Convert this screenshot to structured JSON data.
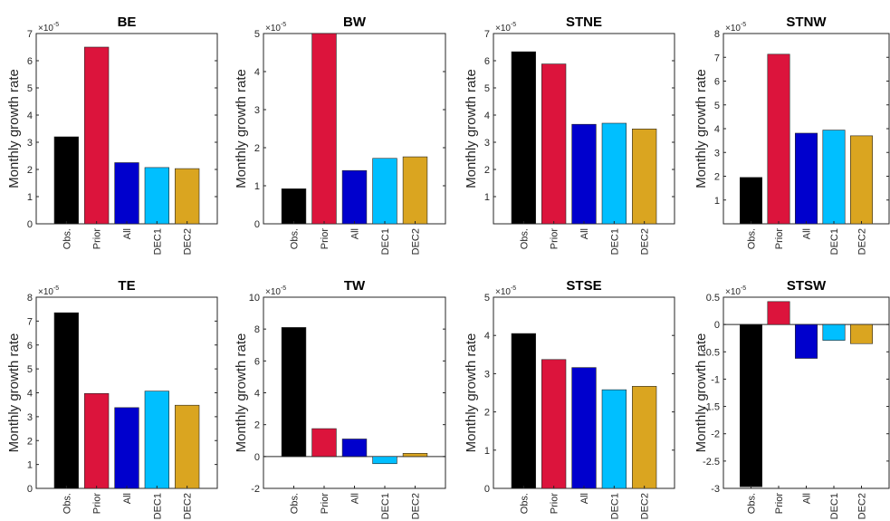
{
  "chart_data": [
    {
      "type": "bar",
      "title": "BE",
      "ylabel": "Monthly growth rate",
      "multiplier": "-5",
      "categories": [
        "Obs.",
        "Prior",
        "All",
        "DEC1",
        "DEC2"
      ],
      "values": [
        3.2,
        6.5,
        2.25,
        2.07,
        2.03
      ],
      "ylim": [
        0,
        7
      ],
      "yticks": [
        0,
        1,
        2,
        3,
        4,
        5,
        6,
        7
      ],
      "colors": [
        "#000000",
        "#DC143C",
        "#0000CD",
        "#00BFFF",
        "#DAA520"
      ]
    },
    {
      "type": "bar",
      "title": "BW",
      "ylabel": "Monthly growth rate",
      "multiplier": "-5",
      "categories": [
        "Obs.",
        "Prior",
        "All",
        "DEC1",
        "DEC2"
      ],
      "values": [
        0.92,
        5.0,
        1.4,
        1.72,
        1.76
      ],
      "ylim": [
        0,
        5
      ],
      "yticks": [
        0,
        1,
        2,
        3,
        4,
        5
      ],
      "colors": [
        "#000000",
        "#DC143C",
        "#0000CD",
        "#00BFFF",
        "#DAA520"
      ]
    },
    {
      "type": "bar",
      "title": "STNE",
      "ylabel": "Monthly growth rate",
      "multiplier": "-5",
      "categories": [
        "Obs.",
        "Prior",
        "All",
        "DEC1",
        "DEC2"
      ],
      "values": [
        6.33,
        5.88,
        3.66,
        3.7,
        3.49
      ],
      "ylim": [
        0,
        7
      ],
      "yticks": [
        1,
        2,
        3,
        4,
        5,
        6,
        7
      ],
      "colors": [
        "#000000",
        "#DC143C",
        "#0000CD",
        "#00BFFF",
        "#DAA520"
      ]
    },
    {
      "type": "bar",
      "title": "STNW",
      "ylabel": "Monthly growth rate",
      "multiplier": "-5",
      "categories": [
        "Obs.",
        "Prior",
        "All",
        "DEC1",
        "DEC2"
      ],
      "values": [
        1.95,
        7.13,
        3.81,
        3.94,
        3.7
      ],
      "ylim": [
        0,
        8
      ],
      "yticks": [
        1,
        2,
        3,
        4,
        5,
        6,
        7,
        8
      ],
      "colors": [
        "#000000",
        "#DC143C",
        "#0000CD",
        "#00BFFF",
        "#DAA520"
      ]
    },
    {
      "type": "bar",
      "title": "TE",
      "ylabel": "Monthly growth rate",
      "multiplier": "-5",
      "categories": [
        "Obs.",
        "Prior",
        "All",
        "DEC1",
        "DEC2"
      ],
      "values": [
        7.35,
        3.97,
        3.38,
        4.07,
        3.48
      ],
      "ylim": [
        0,
        8
      ],
      "yticks": [
        0,
        1,
        2,
        3,
        4,
        5,
        6,
        7,
        8
      ],
      "colors": [
        "#000000",
        "#DC143C",
        "#0000CD",
        "#00BFFF",
        "#DAA520"
      ]
    },
    {
      "type": "bar",
      "title": "TW",
      "ylabel": "Monthly growth rate",
      "multiplier": "-5",
      "categories": [
        "Obs.",
        "Prior",
        "All",
        "DEC1",
        "DEC2"
      ],
      "values": [
        8.1,
        1.75,
        1.1,
        -0.45,
        0.2
      ],
      "ylim": [
        -2,
        10
      ],
      "yticks": [
        -2,
        0,
        2,
        4,
        6,
        8,
        10
      ],
      "colors": [
        "#000000",
        "#DC143C",
        "#0000CD",
        "#00BFFF",
        "#DAA520"
      ]
    },
    {
      "type": "bar",
      "title": "STSE",
      "ylabel": "Monthly growth rate",
      "multiplier": "-5",
      "categories": [
        "Obs.",
        "Prior",
        "All",
        "DEC1",
        "DEC2"
      ],
      "values": [
        4.05,
        3.37,
        3.16,
        2.58,
        2.67
      ],
      "ylim": [
        0,
        5
      ],
      "yticks": [
        0,
        1,
        2,
        3,
        4,
        5
      ],
      "colors": [
        "#000000",
        "#DC143C",
        "#0000CD",
        "#00BFFF",
        "#DAA520"
      ]
    },
    {
      "type": "bar",
      "title": "STSW",
      "ylabel": "Monthly growth rate",
      "multiplier": "-5",
      "categories": [
        "Obs.",
        "Prior",
        "All",
        "DEC1",
        "DEC2"
      ],
      "values": [
        -2.97,
        0.42,
        -0.62,
        -0.29,
        -0.35
      ],
      "ylim": [
        -3,
        0.5
      ],
      "yticks": [
        -3,
        -2.5,
        -2,
        -1.5,
        -1,
        -0.5,
        0,
        0.5
      ],
      "colors": [
        "#000000",
        "#DC143C",
        "#0000CD",
        "#00BFFF",
        "#DAA520"
      ]
    }
  ]
}
